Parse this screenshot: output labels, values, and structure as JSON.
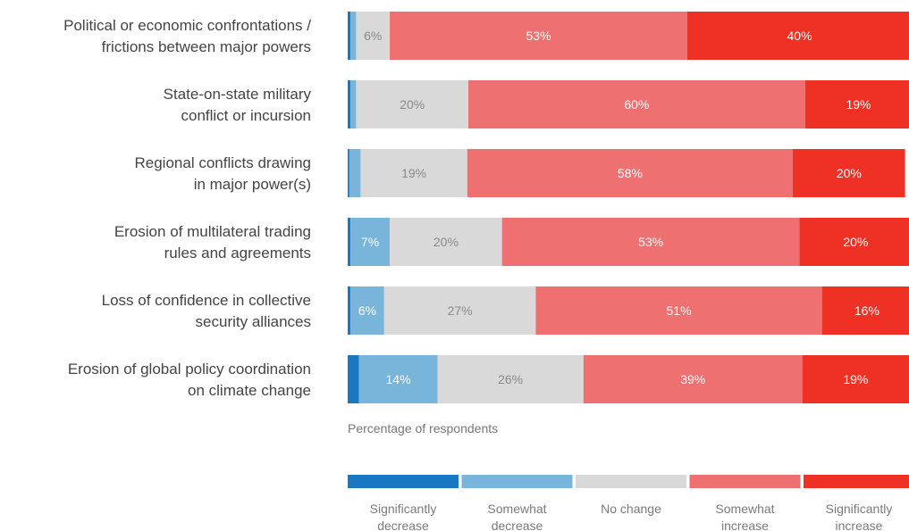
{
  "chart_data": {
    "type": "bar",
    "orientation": "horizontal",
    "stacked": true,
    "categories": [
      [
        "Political or economic confrontations /",
        "frictions between major powers"
      ],
      [
        "State-on-state military",
        "conflict or incursion"
      ],
      [
        "Regional conflicts drawing",
        "in major power(s)"
      ],
      [
        "Erosion of multilateral trading",
        "rules and agreements"
      ],
      [
        "Loss of confidence in collective",
        "security alliances"
      ],
      [
        "Erosion of global policy coordination",
        "on climate change"
      ]
    ],
    "series": [
      {
        "name": "Significantly decrease",
        "legend_lines": [
          "Significantly",
          "decrease"
        ],
        "color": "#1a78c2",
        "values": [
          0.5,
          0.5,
          0.3,
          0.5,
          0.5,
          2
        ],
        "labels": [
          "",
          "",
          "",
          "",
          "",
          ""
        ]
      },
      {
        "name": "Somewhat decrease",
        "legend_lines": [
          "Somewhat",
          "decrease"
        ],
        "color": "#79b5db",
        "values": [
          1,
          1,
          2,
          7,
          6,
          14
        ],
        "labels": [
          "",
          "",
          "",
          "7%",
          "6%",
          "14%"
        ]
      },
      {
        "name": "No change",
        "legend_lines": [
          "No change"
        ],
        "color": "#d9d9d9",
        "values": [
          6,
          20,
          19,
          20,
          27,
          26
        ],
        "labels": [
          "6%",
          "20%",
          "19%",
          "20%",
          "27%",
          "26%"
        ]
      },
      {
        "name": "Somewhat increase",
        "legend_lines": [
          "Somewhat",
          "increase"
        ],
        "color": "#ef7070",
        "values": [
          53,
          60,
          58,
          53,
          51,
          39
        ],
        "labels": [
          "53%",
          "60%",
          "58%",
          "53%",
          "51%",
          "39%"
        ]
      },
      {
        "name": "Significantly increase",
        "legend_lines": [
          "Significantly",
          "increase"
        ],
        "color": "#ee3124",
        "values": [
          40,
          19,
          20,
          20,
          16,
          19
        ],
        "labels": [
          "40%",
          "19%",
          "20%",
          "20%",
          "16%",
          "19%"
        ]
      }
    ],
    "xlabel": "Percentage of respondents",
    "xlim": [
      0,
      100
    ],
    "legend": "bottom",
    "grid": false
  }
}
